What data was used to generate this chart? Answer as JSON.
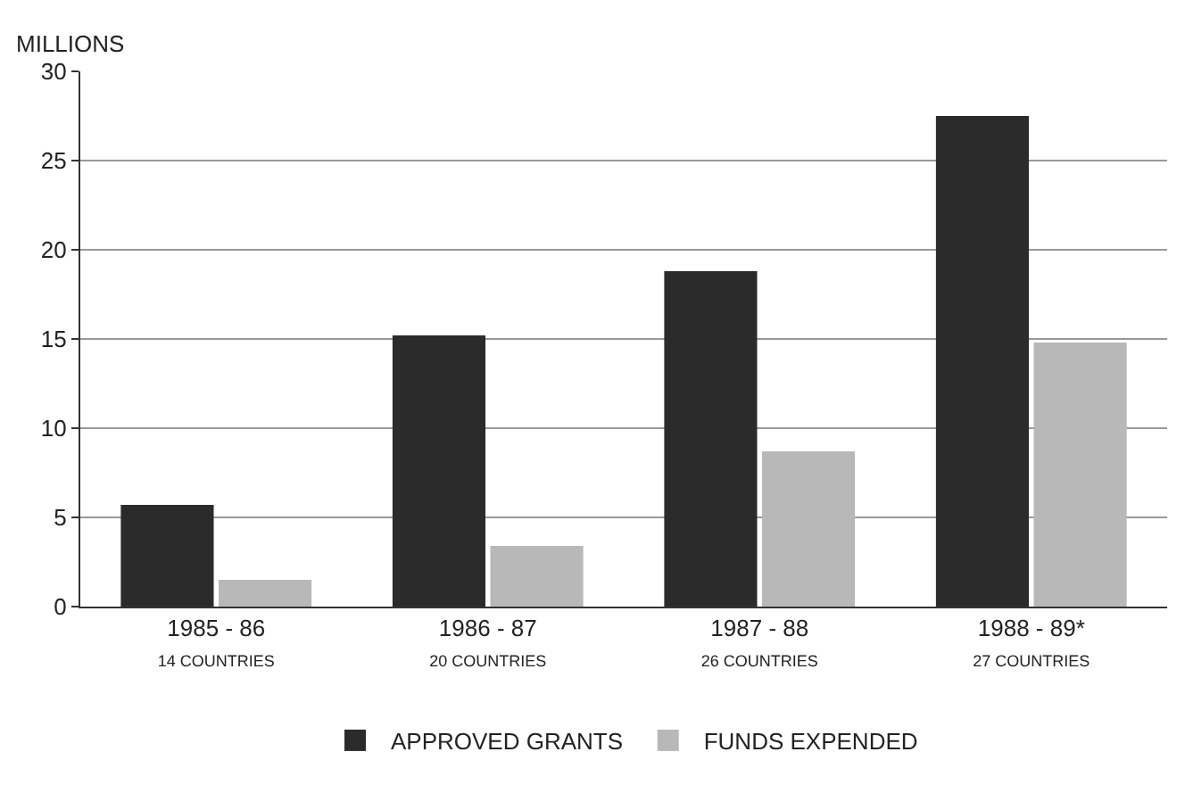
{
  "chart_data": {
    "type": "bar",
    "ylabel": "MILLIONS",
    "categories": [
      "1985 - 86\n14 COUNTRIES",
      "1986 - 87\n20 COUNTRIES",
      "1987 - 88\n26 COUNTRIES",
      "1988 - 89*\n27 COUNTRIES"
    ],
    "series": [
      {
        "name": "APPROVED GRANTS",
        "color": "#2b2b2b",
        "values": [
          5.7,
          15.2,
          18.8,
          27.5
        ]
      },
      {
        "name": "FUNDS EXPENDED",
        "color": "#b8b8b8",
        "values": [
          1.5,
          3.4,
          8.7,
          14.8
        ]
      }
    ],
    "ylim": [
      0,
      30
    ],
    "yticks": [
      0,
      5,
      10,
      15,
      20,
      25,
      30
    ],
    "grid": "y",
    "legend": "bottom"
  }
}
